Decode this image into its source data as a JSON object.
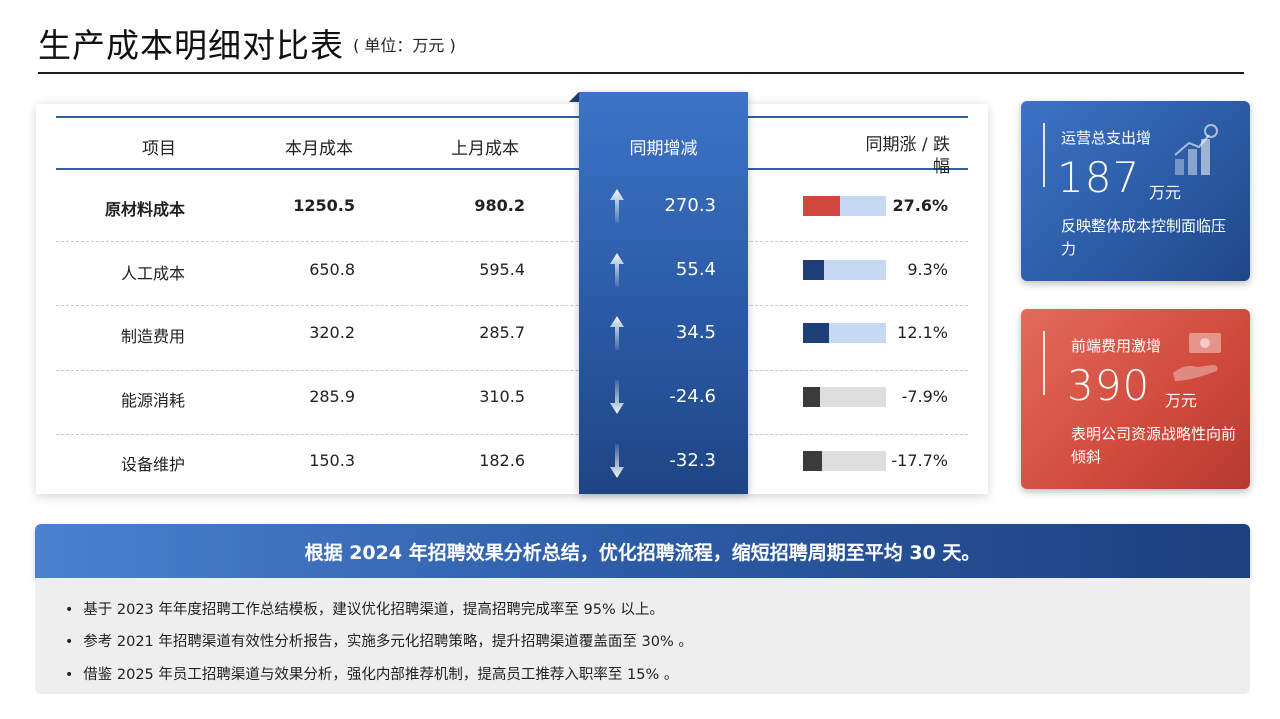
{
  "header": {
    "title": "生产成本明细对比表",
    "unit": "( 单位：万元 )"
  },
  "table": {
    "columns": [
      "项目",
      "本月成本",
      "上月成本",
      "同期增减",
      "同期涨 / 跌幅"
    ],
    "rows": [
      {
        "name": "原材料成本",
        "current": "1250.5",
        "previous": "980.2",
        "change": "270.3",
        "pct": "27.6%",
        "direction": "up",
        "bar_fill": 0.45,
        "bar_color": "#d0473b",
        "track_color": "#c6d9f2",
        "bold": true
      },
      {
        "name": "人工成本",
        "current": "650.8",
        "previous": "595.4",
        "change": "55.4",
        "pct": "9.3%",
        "direction": "up",
        "bar_fill": 0.25,
        "bar_color": "#1e3e78",
        "track_color": "#c6d9f2",
        "bold": false
      },
      {
        "name": "制造费用",
        "current": "320.2",
        "previous": "285.7",
        "change": "34.5",
        "pct": "12.1%",
        "direction": "up",
        "bar_fill": 0.31,
        "bar_color": "#1e3e78",
        "track_color": "#c6d9f2",
        "bold": false
      },
      {
        "name": "能源消耗",
        "current": "285.9",
        "previous": "310.5",
        "change": "-24.6",
        "pct": "-7.9%",
        "direction": "down",
        "bar_fill": 0.2,
        "bar_color": "#3b3b3b",
        "track_color": "#dddddd",
        "bold": false
      },
      {
        "name": "设备维护",
        "current": "150.3",
        "previous": "182.6",
        "change": "-32.3",
        "pct": "-17.7%",
        "direction": "down",
        "bar_fill": 0.23,
        "bar_color": "#3b3b3b",
        "track_color": "#dddddd",
        "bold": false
      }
    ]
  },
  "kpis": [
    {
      "label": "运营总支出增",
      "value": "187",
      "unit": "万元",
      "desc": "反映整体成本控制面临压力",
      "icon": "bar-chart-growth-icon"
    },
    {
      "label": "前端费用激增",
      "value": "390",
      "unit": "万元",
      "desc": "表明公司资源战略性向前倾斜",
      "icon": "hand-money-icon"
    }
  ],
  "banner": {
    "text": "根据 2024 年招聘效果分析总结，优化招聘流程，缩短招聘周期至平均 30 天。"
  },
  "bullets": [
    "基于 2023 年年度招聘工作总结模板，建议优化招聘渠道，提高招聘完成率至 95% 以上。",
    "参考 2021 年招聘渠道有效性分析报告，实施多元化招聘策略，提升招聘渠道覆盖面至 30% 。",
    "借鉴 2025 年员工招聘渠道与效果分析，强化内部推荐机制，提高员工推荐入职率至 15% 。"
  ]
}
